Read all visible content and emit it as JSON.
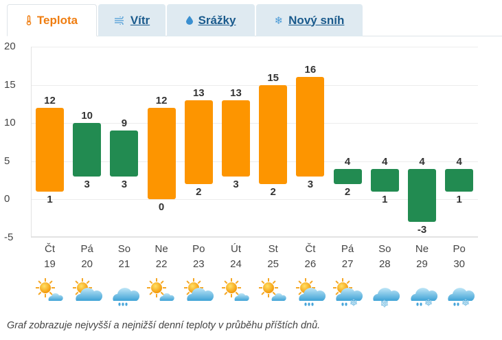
{
  "tabs": [
    {
      "label": "Teplota",
      "icon": "thermometer-icon",
      "active": true
    },
    {
      "label": "Vítr",
      "icon": "wind-icon",
      "active": false
    },
    {
      "label": "Srážky",
      "icon": "raindrop-icon",
      "active": false
    },
    {
      "label": "Nový sníh",
      "icon": "snowflake-icon",
      "active": false
    }
  ],
  "colors": {
    "warm_bar": "#fd9500",
    "cool_bar": "#228b51",
    "active_tab": "#ef7d10",
    "link": "#1a5a8c",
    "tab_bg": "#dfeaf1"
  },
  "chart_data": {
    "type": "bar",
    "subtype": "floating range bar (daily min/max temperature)",
    "title": "",
    "xlabel": "",
    "ylabel": "",
    "ylim": [
      -5,
      20
    ],
    "yticks": [
      20,
      15,
      10,
      5,
      0,
      -5
    ],
    "grid": true,
    "categories": [
      "Čt 19",
      "Pá 20",
      "So 21",
      "Ne 22",
      "Po 23",
      "Út 24",
      "St 25",
      "Čt 26",
      "Pá 27",
      "So 28",
      "Ne 29",
      "Po 30"
    ],
    "series": [
      {
        "name": "max",
        "values": [
          12,
          10,
          9,
          12,
          13,
          13,
          15,
          16,
          4,
          4,
          4,
          4
        ]
      },
      {
        "name": "min",
        "values": [
          1,
          3,
          3,
          0,
          2,
          3,
          2,
          3,
          2,
          1,
          -3,
          1
        ]
      }
    ],
    "bar_colors": [
      "orange",
      "green",
      "green",
      "orange",
      "orange",
      "orange",
      "orange",
      "orange",
      "green",
      "green",
      "green",
      "green"
    ]
  },
  "days": [
    {
      "name": "Čt",
      "date": "19",
      "icon": "sun-small-cloud-icon"
    },
    {
      "name": "Pá",
      "date": "20",
      "icon": "partly-cloudy-icon"
    },
    {
      "name": "So",
      "date": "21",
      "icon": "cloud-rain-icon"
    },
    {
      "name": "Ne",
      "date": "22",
      "icon": "sun-small-cloud-icon"
    },
    {
      "name": "Po",
      "date": "23",
      "icon": "partly-cloudy-icon"
    },
    {
      "name": "Út",
      "date": "24",
      "icon": "sun-small-cloud-icon"
    },
    {
      "name": "St",
      "date": "25",
      "icon": "sun-small-cloud-icon"
    },
    {
      "name": "Čt",
      "date": "26",
      "icon": "sun-cloud-rain-icon"
    },
    {
      "name": "Pá",
      "date": "27",
      "icon": "sun-cloud-sleet-icon"
    },
    {
      "name": "So",
      "date": "28",
      "icon": "cloud-snow-icon"
    },
    {
      "name": "Ne",
      "date": "29",
      "icon": "cloud-sleet-icon"
    },
    {
      "name": "Po",
      "date": "30",
      "icon": "cloud-sleet-icon"
    }
  ],
  "caption": "Graf zobrazuje nejvyšší a nejnižší denní teploty v průběhu příštích dnů."
}
